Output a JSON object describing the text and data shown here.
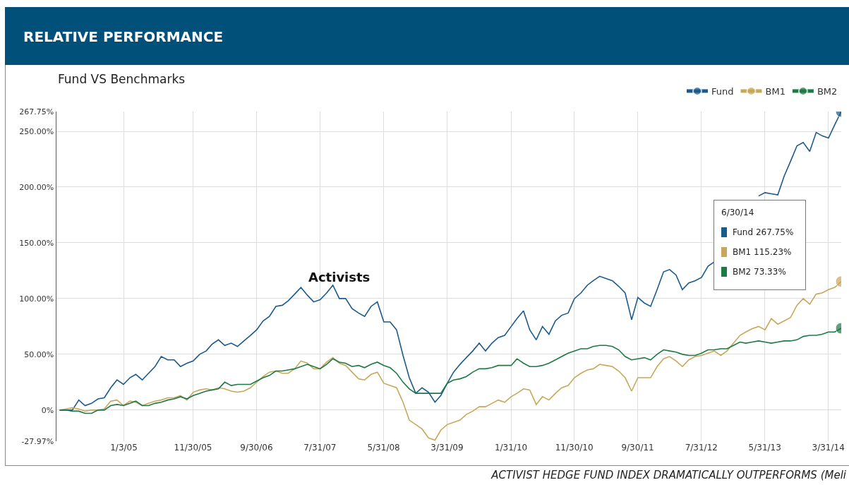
{
  "chart_data": {
    "type": "line",
    "title": "RELATIVE PERFORMANCE",
    "subtitle": "Fund VS Benchmarks",
    "annotations": [
      "Activists",
      "6/30/14",
      "Fund 267.75%",
      "BM1 115.23%",
      "BM2 73.33%",
      "ACTIVIST HEDGE FUND INDEX DRAMATICALLY OUTPERFORMS (Meli"
    ],
    "x": [
      "2004-03",
      "2004-04",
      "2004-05",
      "2004-06",
      "2004-07",
      "2004-08",
      "2004-09",
      "2004-10",
      "2004-11",
      "2004-12",
      "2005-01",
      "2005-02",
      "2005-03",
      "2005-04",
      "2005-05",
      "2005-06",
      "2005-07",
      "2005-08",
      "2005-09",
      "2005-10",
      "2005-11",
      "2005-12",
      "2006-01",
      "2006-02",
      "2006-03",
      "2006-04",
      "2006-05",
      "2006-06",
      "2006-07",
      "2006-08",
      "2006-09",
      "2006-10",
      "2006-11",
      "2006-12",
      "2007-01",
      "2007-02",
      "2007-03",
      "2007-04",
      "2007-05",
      "2007-06",
      "2007-07",
      "2007-08",
      "2007-09",
      "2007-10",
      "2007-11",
      "2007-12",
      "2008-01",
      "2008-02",
      "2008-03",
      "2008-04",
      "2008-05",
      "2008-06",
      "2008-07",
      "2008-08",
      "2008-09",
      "2008-10",
      "2008-11",
      "2008-12",
      "2009-01",
      "2009-02",
      "2009-03",
      "2009-04",
      "2009-05",
      "2009-06",
      "2009-07",
      "2009-08",
      "2009-09",
      "2009-10",
      "2009-11",
      "2009-12",
      "2010-01",
      "2010-02",
      "2010-03",
      "2010-04",
      "2010-05",
      "2010-06",
      "2010-07",
      "2010-08",
      "2010-09",
      "2010-10",
      "2010-11",
      "2010-12",
      "2011-01",
      "2011-02",
      "2011-03",
      "2011-04",
      "2011-05",
      "2011-06",
      "2011-07",
      "2011-08",
      "2011-09",
      "2011-10",
      "2011-11",
      "2011-12",
      "2012-01",
      "2012-02",
      "2012-03",
      "2012-04",
      "2012-05",
      "2012-06",
      "2012-07",
      "2012-08",
      "2012-09",
      "2012-10",
      "2012-11",
      "2012-12",
      "2013-01",
      "2013-02",
      "2013-03",
      "2013-04",
      "2013-05",
      "2013-06",
      "2013-07",
      "2013-08",
      "2013-09",
      "2013-10",
      "2013-11",
      "2013-12",
      "2014-01",
      "2014-02",
      "2014-03",
      "2014-04",
      "2014-05",
      "2014-06"
    ],
    "series": [
      {
        "name": "Fund",
        "color": "#1b5b8c",
        "values": [
          0,
          0,
          0,
          9,
          4,
          6,
          10,
          11,
          20,
          27,
          23,
          29,
          32,
          27,
          33,
          39,
          48,
          45,
          45,
          39,
          42,
          44,
          50,
          53,
          59,
          63,
          58,
          60,
          57,
          62,
          67,
          72,
          80,
          84,
          93,
          94,
          98,
          104,
          110,
          103,
          97,
          99,
          105,
          112,
          100,
          100,
          91,
          87,
          84,
          93,
          97,
          79,
          79,
          72,
          49,
          29,
          15,
          20,
          16,
          7,
          13,
          24,
          34,
          41,
          47,
          53,
          60,
          53,
          60,
          65,
          67,
          75,
          82,
          89,
          72,
          63,
          75,
          68,
          80,
          85,
          87,
          100,
          105,
          112,
          116,
          120,
          118,
          116,
          111,
          105,
          81,
          101,
          96,
          93,
          108,
          124,
          126,
          121,
          108,
          114,
          116,
          119,
          129,
          133,
          null,
          null,
          null,
          null,
          null,
          null,
          192,
          195,
          194,
          193,
          210,
          223,
          237,
          240,
          232,
          249,
          246,
          244,
          256,
          267.75
        ]
      },
      {
        "name": "BM1",
        "color": "#c9a75a",
        "values": [
          0,
          1,
          2,
          1,
          -1,
          0,
          0,
          1,
          8,
          9,
          4,
          8,
          7,
          4,
          6,
          8,
          9,
          11,
          11,
          13,
          9,
          16,
          18,
          19,
          18,
          20,
          19,
          17,
          16,
          17,
          20,
          25,
          30,
          34,
          35,
          33,
          33,
          37,
          44,
          42,
          37,
          37,
          43,
          47,
          42,
          40,
          34,
          28,
          27,
          32,
          34,
          24,
          22,
          20,
          7,
          -9,
          -13,
          -17,
          -25,
          -27,
          -18,
          -13,
          -11,
          -9,
          -4,
          -1,
          3,
          3,
          6,
          9,
          7,
          12,
          15,
          19,
          18,
          5,
          12,
          9,
          15,
          20,
          22,
          29,
          33,
          36,
          37,
          41,
          40,
          39,
          35,
          29,
          17,
          29,
          29,
          29,
          39,
          46,
          48,
          44,
          39,
          45,
          48,
          49,
          51,
          53,
          49,
          53,
          60,
          67,
          70,
          73,
          75,
          72,
          82,
          77,
          80,
          83,
          94,
          100,
          95,
          104,
          105,
          108,
          110,
          115.23
        ]
      },
      {
        "name": "BM2",
        "color": "#1e7a45",
        "values": [
          0,
          0,
          -1,
          -1,
          -3,
          -3,
          0,
          0,
          4,
          5,
          4,
          6,
          8,
          4,
          4,
          6,
          7,
          9,
          10,
          12,
          10,
          13,
          15,
          17,
          18,
          19,
          25,
          22,
          23,
          23,
          23,
          26,
          29,
          31,
          35,
          35,
          36,
          37,
          39,
          41,
          39,
          37,
          41,
          46,
          43,
          42,
          39,
          40,
          38,
          41,
          43,
          40,
          38,
          33,
          25,
          19,
          15,
          15,
          15,
          15,
          15,
          24,
          27,
          28,
          30,
          34,
          37,
          37,
          38,
          40,
          40,
          40,
          46,
          42,
          39,
          39,
          40,
          42,
          45,
          48,
          51,
          53,
          55,
          55,
          57,
          58,
          58,
          57,
          54,
          48,
          45,
          46,
          47,
          45,
          50,
          54,
          53,
          52,
          50,
          49,
          49,
          51,
          54,
          54,
          55,
          55,
          58,
          61,
          60,
          61,
          62,
          61,
          60,
          61,
          62,
          62,
          63,
          66,
          67,
          67,
          68,
          70,
          70,
          73.33
        ]
      }
    ],
    "xlim": [
      "2004-02-15",
      "2014-06-01"
    ],
    "xticks": [
      {
        "value": "2005-01-03",
        "label": "1/3/05"
      },
      {
        "value": "2005-11-30",
        "label": "11/30/05"
      },
      {
        "value": "2006-09-30",
        "label": "9/30/06"
      },
      {
        "value": "2007-07-31",
        "label": "7/31/07"
      },
      {
        "value": "2008-05-31",
        "label": "5/31/08"
      },
      {
        "value": "2009-03-31",
        "label": "3/31/09"
      },
      {
        "value": "2010-01-31",
        "label": "1/31/10"
      },
      {
        "value": "2010-11-30",
        "label": "11/30/10"
      },
      {
        "value": "2011-09-30",
        "label": "9/30/11"
      },
      {
        "value": "2012-07-31",
        "label": "7/31/12"
      },
      {
        "value": "2013-05-31",
        "label": "5/31/13"
      },
      {
        "value": "2014-03-31",
        "label": "3/31/14"
      }
    ],
    "ylim": [
      -27.97,
      267.75
    ],
    "yticks": [
      {
        "value": -27.97,
        "label": "-27.97%"
      },
      {
        "value": 0,
        "label": "0%"
      },
      {
        "value": 50,
        "label": "50.00%"
      },
      {
        "value": 100,
        "label": "100.00%"
      },
      {
        "value": 150,
        "label": "150.00%"
      },
      {
        "value": 200,
        "label": "200.00%"
      },
      {
        "value": 250,
        "label": "250.00%"
      },
      {
        "value": 267.75,
        "label": "267.75%"
      }
    ],
    "grid": true,
    "legend": "top right"
  }
}
